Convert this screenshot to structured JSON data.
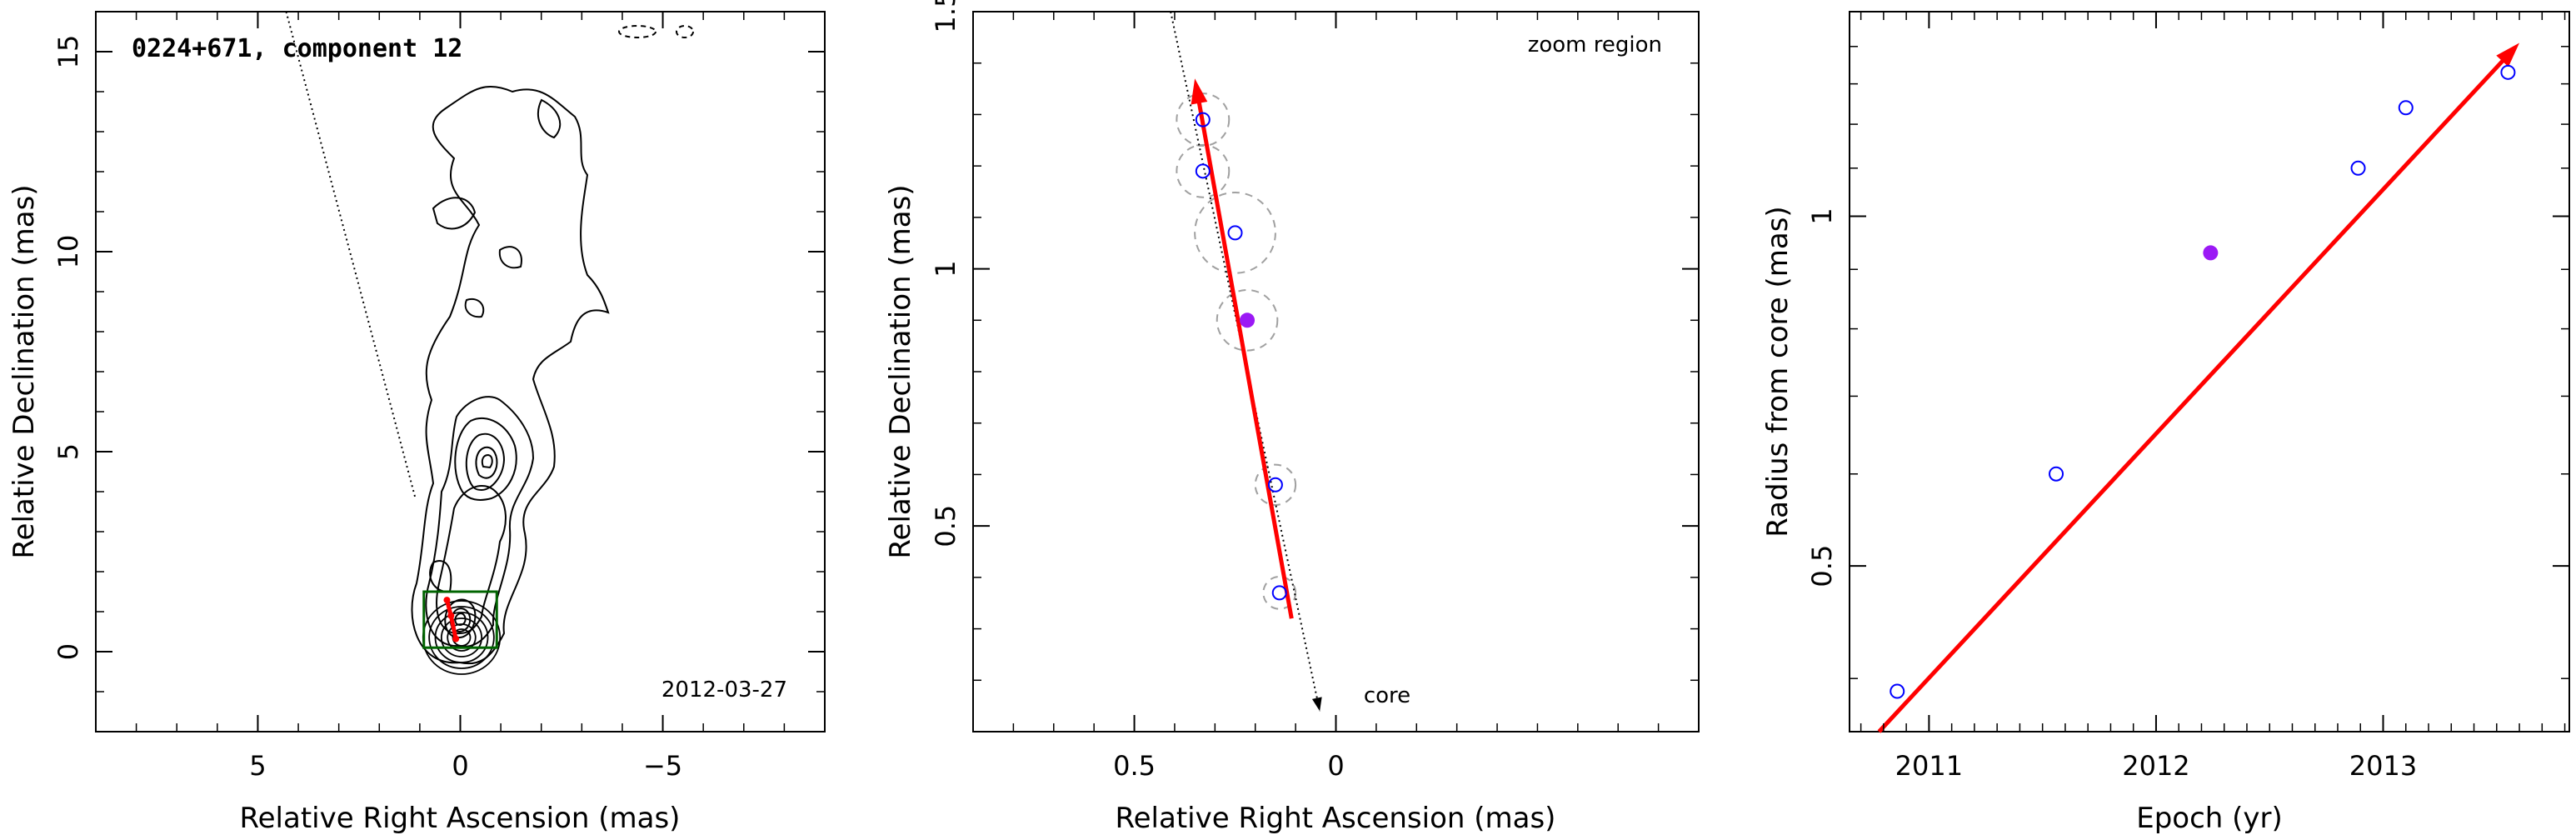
{
  "colors": {
    "axes": "#000000",
    "fit_arrow": "#ff0000",
    "open_marker": "#0000ff",
    "filled_marker": "#9b19f5",
    "error_circle": "#a0a0a0",
    "box": "#006400"
  },
  "chart_data": [
    {
      "type": "contour",
      "title": "0224+671, component 12",
      "annotation": "2012-03-27",
      "xlabel": "Relative Right Ascension (mas)",
      "ylabel": "Relative Declination (mas)",
      "xlim": [
        9,
        -9
      ],
      "ylim": [
        -2,
        16
      ],
      "xticks": [
        5,
        0,
        -5
      ],
      "xtick_labels": [
        "5",
        "0",
        "−5"
      ],
      "yticks": [
        0,
        5,
        10,
        15
      ],
      "ytick_labels": [
        "0",
        "5",
        "10",
        "15"
      ],
      "direction_line": {
        "from": [
          4.3,
          16
        ],
        "to": [
          1.1,
          3.8
        ],
        "style": "dotted"
      },
      "zoom_box": {
        "x": [
          -0.9,
          0.9
        ],
        "y": [
          0.1,
          1.5
        ]
      },
      "contour_levels_count": 12,
      "trajectory": [
        [
          0.33,
          1.29
        ],
        [
          0.23,
          0.9
        ],
        [
          0.11,
          0.32
        ]
      ]
    },
    {
      "type": "scatter",
      "annotation": "zoom region",
      "core_label": "core",
      "xlabel": "Relative Right Ascension (mas)",
      "ylabel": "Relative Declination (mas)",
      "xlim": [
        0.9,
        -0.9
      ],
      "ylim": [
        0.1,
        1.5
      ],
      "xticks": [
        0.5,
        0
      ],
      "xtick_labels": [
        "0.5",
        "0"
      ],
      "yticks": [
        0.5,
        1,
        1.5
      ],
      "ytick_labels": [
        "0.5",
        "1",
        "1.5"
      ],
      "points": [
        {
          "x": 0.33,
          "y": 1.29,
          "r": 0.065,
          "filled": false
        },
        {
          "x": 0.33,
          "y": 1.19,
          "r": 0.065,
          "filled": false
        },
        {
          "x": 0.25,
          "y": 1.07,
          "r": 0.1,
          "filled": false
        },
        {
          "x": 0.22,
          "y": 0.9,
          "r": 0.075,
          "filled": true
        },
        {
          "x": 0.15,
          "y": 0.58,
          "r": 0.05,
          "filled": false
        },
        {
          "x": 0.14,
          "y": 0.37,
          "r": 0.04,
          "filled": false
        }
      ],
      "fit_arrow": {
        "from": [
          0.11,
          0.32
        ],
        "to": [
          0.35,
          1.37
        ]
      },
      "direction_line": {
        "from": [
          0.41,
          1.5
        ],
        "to": [
          0.04,
          0.14
        ]
      }
    },
    {
      "type": "scatter",
      "xlabel": "Epoch (yr)",
      "ylabel": "Radius from core (mas)",
      "xlim": [
        2010.65,
        2013.82
      ],
      "ylim": [
        0.36,
        1.5
      ],
      "ylog": true,
      "xticks": [
        2011,
        2012,
        2013
      ],
      "xtick_labels": [
        "2011",
        "2012",
        "2013"
      ],
      "yticks": [
        0.5,
        1
      ],
      "ytick_labels": [
        "0.5",
        "1"
      ],
      "points": [
        {
          "x": 2010.86,
          "y": 0.39,
          "filled": false
        },
        {
          "x": 2011.56,
          "y": 0.6,
          "filled": false
        },
        {
          "x": 2012.24,
          "y": 0.93,
          "filled": true
        },
        {
          "x": 2012.89,
          "y": 1.1,
          "filled": false
        },
        {
          "x": 2013.1,
          "y": 1.24,
          "filled": false
        },
        {
          "x": 2013.55,
          "y": 1.33,
          "filled": false
        }
      ],
      "fit_line": {
        "from": [
          2010.78,
          0.36
        ],
        "to": [
          2013.6,
          1.41
        ]
      }
    }
  ]
}
